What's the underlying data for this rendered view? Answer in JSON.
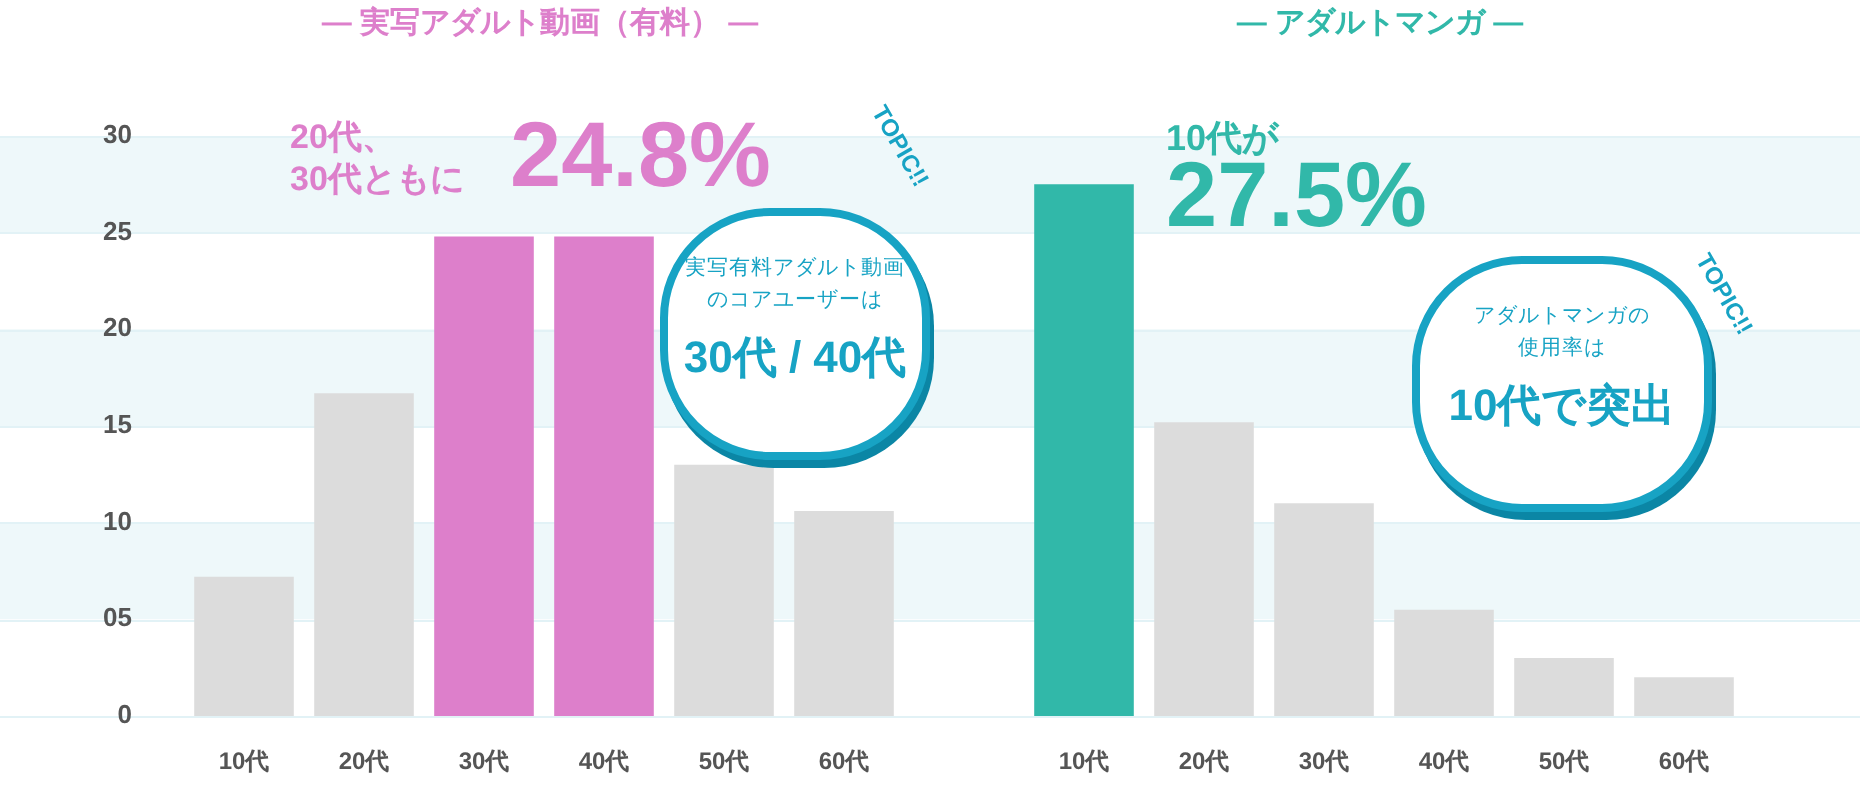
{
  "chart_data": [
    {
      "type": "bar",
      "title": "— 実写アダルト動画（有料） —",
      "categories": [
        "10代",
        "20代",
        "30代",
        "40代",
        "50代",
        "60代"
      ],
      "values": [
        7.2,
        16.7,
        24.8,
        24.8,
        13,
        10.6
      ],
      "colors": [
        "#dcdcdc",
        "#dcdcdc",
        "#dd7fcb",
        "#dd7fcb",
        "#dcdcdc",
        "#dcdcdc"
      ],
      "ylim": [
        0,
        30
      ],
      "yticks": [
        {
          "value": 0,
          "label": "0"
        },
        {
          "value": 5,
          "label": "05"
        },
        10,
        15,
        20,
        25,
        30
      ],
      "grid": "y",
      "annotations": [
        "20代、",
        "30代ともに",
        "24.8%",
        "実写有料アダルト動画",
        "のコアユーザーは",
        "30代 / 40代",
        "TOPIC!!"
      ]
    },
    {
      "type": "bar",
      "title": "— アダルトマンガ —",
      "categories": [
        "10代",
        "20代",
        "30代",
        "40代",
        "50代",
        "60代"
      ],
      "values": [
        27.5,
        15.2,
        11.0,
        5.5,
        3.0,
        2.0
      ],
      "colors": [
        "#31b8a9",
        "#dcdcdc",
        "#dcdcdc",
        "#dcdcdc",
        "#dcdcdc",
        "#dcdcdc"
      ],
      "ylim": [
        0,
        30
      ],
      "grid": "y",
      "tick_labels": "x",
      "annotations": [
        "10代が",
        "27.5%",
        "アダルトマンガの",
        "使用率は",
        "10代で突出",
        "TOPIC!!"
      ]
    }
  ]
}
